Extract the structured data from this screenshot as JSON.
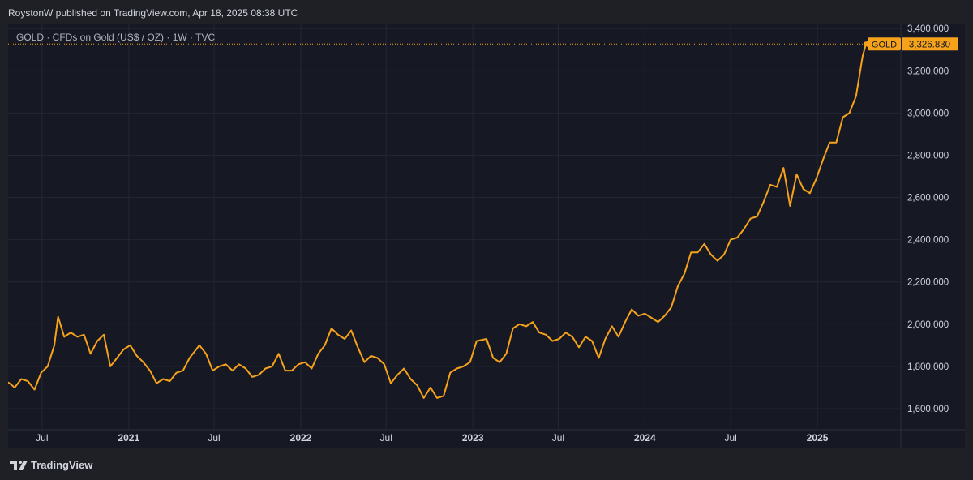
{
  "header": {
    "published": "RoystonW published on TradingView.com, Apr 18, 2025 08:38 UTC"
  },
  "legend": {
    "text": "GOLD · CFDs on Gold (US$ / OZ) · 1W · TVC"
  },
  "footer": {
    "brand": "TradingView"
  },
  "colors": {
    "line": "#f7a21b",
    "background": "#161923",
    "grid": "#232735",
    "text": "#d1d4dc"
  },
  "chart_data": {
    "type": "line",
    "ylim": [
      1500,
      3420
    ],
    "yticks": [
      1600,
      1800,
      2000,
      2200,
      2400,
      2600,
      2800,
      3000,
      3200,
      3400
    ],
    "ytick_labels": [
      "1,600.000",
      "1,800.000",
      "2,000.000",
      "2,200.000",
      "2,400.000",
      "2,600.000",
      "2,800.000",
      "3,000.000",
      "3,200.000",
      "3,400.000"
    ],
    "x_range": [
      "2020-04-20",
      "2025-06-27"
    ],
    "xticks": [
      {
        "date": "2020-07-01",
        "label": "Jul"
      },
      {
        "date": "2021-01-01",
        "label": "2021"
      },
      {
        "date": "2021-07-01",
        "label": "Jul"
      },
      {
        "date": "2022-01-01",
        "label": "2022"
      },
      {
        "date": "2022-07-01",
        "label": "Jul"
      },
      {
        "date": "2023-01-01",
        "label": "2023"
      },
      {
        "date": "2023-07-01",
        "label": "Jul"
      },
      {
        "date": "2024-01-01",
        "label": "2024"
      },
      {
        "date": "2024-07-01",
        "label": "Jul"
      },
      {
        "date": "2025-01-01",
        "label": "2025"
      }
    ],
    "series": [
      {
        "name": "GOLD",
        "points": [
          [
            "2020-04-20",
            1725
          ],
          [
            "2020-05-04",
            1700
          ],
          [
            "2020-05-18",
            1740
          ],
          [
            "2020-06-01",
            1730
          ],
          [
            "2020-06-15",
            1690
          ],
          [
            "2020-06-29",
            1770
          ],
          [
            "2020-07-13",
            1800
          ],
          [
            "2020-07-27",
            1900
          ],
          [
            "2020-08-04",
            2035
          ],
          [
            "2020-08-17",
            1940
          ],
          [
            "2020-08-31",
            1960
          ],
          [
            "2020-09-14",
            1940
          ],
          [
            "2020-09-28",
            1950
          ],
          [
            "2020-10-12",
            1860
          ],
          [
            "2020-10-26",
            1920
          ],
          [
            "2020-11-09",
            1950
          ],
          [
            "2020-11-23",
            1800
          ],
          [
            "2020-12-07",
            1840
          ],
          [
            "2020-12-21",
            1880
          ],
          [
            "2021-01-04",
            1900
          ],
          [
            "2021-01-18",
            1850
          ],
          [
            "2021-02-01",
            1820
          ],
          [
            "2021-02-15",
            1780
          ],
          [
            "2021-03-01",
            1720
          ],
          [
            "2021-03-15",
            1740
          ],
          [
            "2021-03-29",
            1730
          ],
          [
            "2021-04-12",
            1770
          ],
          [
            "2021-04-26",
            1780
          ],
          [
            "2021-05-10",
            1840
          ],
          [
            "2021-05-31",
            1900
          ],
          [
            "2021-06-14",
            1860
          ],
          [
            "2021-06-28",
            1780
          ],
          [
            "2021-07-12",
            1800
          ],
          [
            "2021-07-26",
            1810
          ],
          [
            "2021-08-09",
            1780
          ],
          [
            "2021-08-23",
            1810
          ],
          [
            "2021-09-06",
            1790
          ],
          [
            "2021-09-20",
            1750
          ],
          [
            "2021-10-04",
            1760
          ],
          [
            "2021-10-18",
            1790
          ],
          [
            "2021-11-01",
            1800
          ],
          [
            "2021-11-15",
            1860
          ],
          [
            "2021-11-29",
            1780
          ],
          [
            "2021-12-13",
            1780
          ],
          [
            "2021-12-27",
            1810
          ],
          [
            "2022-01-10",
            1820
          ],
          [
            "2022-01-24",
            1790
          ],
          [
            "2022-02-07",
            1860
          ],
          [
            "2022-02-21",
            1900
          ],
          [
            "2022-03-07",
            1980
          ],
          [
            "2022-03-21",
            1950
          ],
          [
            "2022-04-04",
            1930
          ],
          [
            "2022-04-18",
            1970
          ],
          [
            "2022-05-02",
            1890
          ],
          [
            "2022-05-16",
            1820
          ],
          [
            "2022-05-30",
            1850
          ],
          [
            "2022-06-13",
            1840
          ],
          [
            "2022-06-27",
            1810
          ],
          [
            "2022-07-11",
            1720
          ],
          [
            "2022-07-25",
            1760
          ],
          [
            "2022-08-08",
            1790
          ],
          [
            "2022-08-22",
            1740
          ],
          [
            "2022-09-05",
            1710
          ],
          [
            "2022-09-19",
            1650
          ],
          [
            "2022-10-03",
            1700
          ],
          [
            "2022-10-17",
            1650
          ],
          [
            "2022-10-31",
            1660
          ],
          [
            "2022-11-14",
            1770
          ],
          [
            "2022-11-28",
            1790
          ],
          [
            "2022-12-12",
            1800
          ],
          [
            "2022-12-26",
            1820
          ],
          [
            "2023-01-09",
            1920
          ],
          [
            "2023-01-30",
            1930
          ],
          [
            "2023-02-13",
            1840
          ],
          [
            "2023-02-27",
            1820
          ],
          [
            "2023-03-13",
            1860
          ],
          [
            "2023-03-27",
            1980
          ],
          [
            "2023-04-10",
            2000
          ],
          [
            "2023-04-24",
            1990
          ],
          [
            "2023-05-08",
            2010
          ],
          [
            "2023-05-22",
            1960
          ],
          [
            "2023-06-05",
            1950
          ],
          [
            "2023-06-19",
            1920
          ],
          [
            "2023-07-03",
            1930
          ],
          [
            "2023-07-17",
            1960
          ],
          [
            "2023-07-31",
            1940
          ],
          [
            "2023-08-14",
            1890
          ],
          [
            "2023-08-28",
            1940
          ],
          [
            "2023-09-11",
            1920
          ],
          [
            "2023-09-25",
            1840
          ],
          [
            "2023-10-09",
            1930
          ],
          [
            "2023-10-23",
            1990
          ],
          [
            "2023-11-06",
            1940
          ],
          [
            "2023-11-20",
            2010
          ],
          [
            "2023-12-04",
            2070
          ],
          [
            "2023-12-18",
            2040
          ],
          [
            "2024-01-01",
            2050
          ],
          [
            "2024-01-15",
            2030
          ],
          [
            "2024-01-29",
            2010
          ],
          [
            "2024-02-12",
            2040
          ],
          [
            "2024-02-26",
            2080
          ],
          [
            "2024-03-11",
            2180
          ],
          [
            "2024-03-25",
            2240
          ],
          [
            "2024-04-08",
            2340
          ],
          [
            "2024-04-22",
            2340
          ],
          [
            "2024-05-06",
            2380
          ],
          [
            "2024-05-20",
            2330
          ],
          [
            "2024-06-03",
            2300
          ],
          [
            "2024-06-17",
            2330
          ],
          [
            "2024-07-01",
            2400
          ],
          [
            "2024-07-15",
            2410
          ],
          [
            "2024-07-29",
            2450
          ],
          [
            "2024-08-12",
            2500
          ],
          [
            "2024-08-26",
            2510
          ],
          [
            "2024-09-09",
            2580
          ],
          [
            "2024-09-23",
            2660
          ],
          [
            "2024-10-07",
            2650
          ],
          [
            "2024-10-21",
            2740
          ],
          [
            "2024-11-04",
            2560
          ],
          [
            "2024-11-18",
            2710
          ],
          [
            "2024-12-02",
            2640
          ],
          [
            "2024-12-16",
            2620
          ],
          [
            "2024-12-30",
            2690
          ],
          [
            "2025-01-13",
            2780
          ],
          [
            "2025-01-27",
            2860
          ],
          [
            "2025-02-10",
            2860
          ],
          [
            "2025-02-24",
            2980
          ],
          [
            "2025-03-10",
            3000
          ],
          [
            "2025-03-24",
            3080
          ],
          [
            "2025-04-07",
            3270
          ],
          [
            "2025-04-14",
            3326.83
          ]
        ]
      }
    ],
    "last_price": {
      "label": "GOLD",
      "value": "3,326.830",
      "numeric": 3326.83
    }
  }
}
